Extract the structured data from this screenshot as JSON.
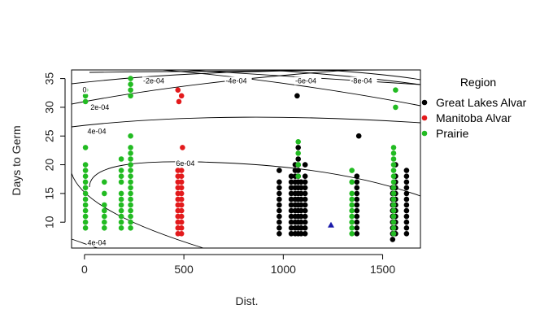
{
  "chart_data": {
    "type": "scatter",
    "xlabel": "Dist.",
    "ylabel": "Days to Germ",
    "xlim": [
      -65,
      1690
    ],
    "ylim": [
      5.5,
      36.5
    ],
    "x_ticks": [
      0,
      500,
      1000,
      1500
    ],
    "y_ticks": [
      10,
      15,
      20,
      25,
      30,
      35
    ],
    "grid": false,
    "legend": {
      "title": "Region",
      "placement": "right",
      "entries": [
        "Great Lakes Alvar",
        "Manitoba Alvar",
        "Prairie"
      ]
    },
    "series": [
      {
        "name": "Great Lakes Alvar",
        "color": "#000000",
        "columns": [
          {
            "x": 980,
            "y": [
              8,
              9,
              10,
              11,
              12,
              13,
              14,
              15,
              16,
              17,
              19
            ]
          },
          {
            "x": 1040,
            "y": [
              8,
              9,
              10,
              11,
              12,
              13,
              14,
              15,
              16,
              17,
              18
            ]
          },
          {
            "x": 1060,
            "y": [
              8,
              9,
              10,
              11,
              12,
              13,
              14,
              15,
              16,
              17,
              18,
              19,
              20
            ]
          },
          {
            "x": 1075,
            "y": [
              8,
              9,
              10,
              11,
              12,
              13,
              14,
              15,
              16,
              17,
              18,
              19,
              20,
              21,
              23
            ]
          },
          {
            "x": 1090,
            "y": [
              8,
              9,
              10,
              11,
              12,
              13,
              14,
              15,
              16,
              17
            ]
          },
          {
            "x": 1110,
            "y": [
              8,
              9,
              10,
              11,
              12,
              13,
              14,
              15,
              16,
              17,
              18,
              20
            ]
          },
          {
            "x": 1370,
            "y": [
              8,
              9,
              10,
              11,
              12,
              13,
              14,
              15,
              16,
              17,
              18
            ]
          },
          {
            "x": 1550,
            "y": [
              7,
              8,
              9,
              10,
              11,
              12,
              13,
              14,
              15,
              16
            ]
          },
          {
            "x": 1565,
            "y": [
              8,
              9,
              10,
              11,
              12,
              13,
              14,
              15,
              16,
              17,
              18,
              20
            ]
          },
          {
            "x": 1620,
            "y": [
              8,
              9,
              10,
              11,
              12,
              13,
              14,
              15,
              16,
              17,
              18,
              19
            ]
          }
        ],
        "points": [
          {
            "x": 1070,
            "y": 32
          },
          {
            "x": 1380,
            "y": 25
          }
        ]
      },
      {
        "name": "Manitoba Alvar",
        "color": "#e31a1c",
        "columns": [
          {
            "x": 470,
            "y": [
              8,
              9,
              10,
              11,
              12,
              13,
              14,
              15,
              16,
              17,
              18,
              19,
              20
            ]
          },
          {
            "x": 488,
            "y": [
              8,
              9,
              10,
              11,
              12,
              13,
              14,
              15,
              16,
              17,
              18,
              19,
              20
            ]
          }
        ],
        "points": [
          {
            "x": 470,
            "y": 33
          },
          {
            "x": 488,
            "y": 32
          },
          {
            "x": 475,
            "y": 31
          },
          {
            "x": 493,
            "y": 23
          }
        ]
      },
      {
        "name": "Prairie",
        "color": "#22bb22",
        "columns": [
          {
            "x": 5,
            "y": [
              9,
              10,
              11,
              12,
              13,
              14,
              15,
              16,
              17,
              18,
              19,
              20,
              23
            ]
          },
          {
            "x": 100,
            "y": [
              9,
              10,
              11,
              12,
              13,
              15,
              17
            ]
          },
          {
            "x": 185,
            "y": [
              9,
              10,
              11,
              12,
              13,
              14,
              15,
              17,
              18,
              19,
              21
            ]
          },
          {
            "x": 232,
            "y": [
              9,
              10,
              11,
              12,
              13,
              14,
              15,
              16,
              17,
              18,
              19,
              20,
              21,
              22,
              23,
              25
            ]
          },
          {
            "x": 1075,
            "y": [
              18,
              20,
              22,
              24
            ]
          },
          {
            "x": 1345,
            "y": [
              8,
              9,
              10,
              11,
              12,
              13,
              14,
              15,
              17,
              19
            ]
          },
          {
            "x": 1555,
            "y": [
              8,
              9,
              10,
              11,
              12,
              13,
              14,
              15,
              16,
              17,
              18,
              19,
              20,
              21,
              22,
              23
            ]
          }
        ],
        "points": [
          {
            "x": 5,
            "y": 33
          },
          {
            "x": 5,
            "y": 32
          },
          {
            "x": 5,
            "y": 31
          },
          {
            "x": 232,
            "y": 35
          },
          {
            "x": 232,
            "y": 34
          },
          {
            "x": 232,
            "y": 33
          },
          {
            "x": 232,
            "y": 32
          },
          {
            "x": 1565,
            "y": 33
          },
          {
            "x": 1565,
            "y": 30
          }
        ]
      }
    ],
    "extra_marker": {
      "shape": "triangle",
      "color": "#1a1aaa",
      "x": 1240,
      "y": 9.5
    },
    "contour_labels": [
      {
        "text": "-2e-04",
        "x": 295,
        "y": 34.6
      },
      {
        "text": "0",
        "x": -10,
        "y": 33
      },
      {
        "text": "2e-04",
        "x": 30,
        "y": 30
      },
      {
        "text": "-4e-04",
        "x": 710,
        "y": 34.6
      },
      {
        "text": "-6e-04",
        "x": 1060,
        "y": 34.6
      },
      {
        "text": "-8e-04",
        "x": 1340,
        "y": 34.6
      },
      {
        "text": "4e-04",
        "x": 15,
        "y": 25.8
      },
      {
        "text": "6e-04",
        "x": 460,
        "y": 20.2
      },
      {
        "text": "4e-04",
        "x": 15,
        "y": 6.4
      }
    ]
  }
}
